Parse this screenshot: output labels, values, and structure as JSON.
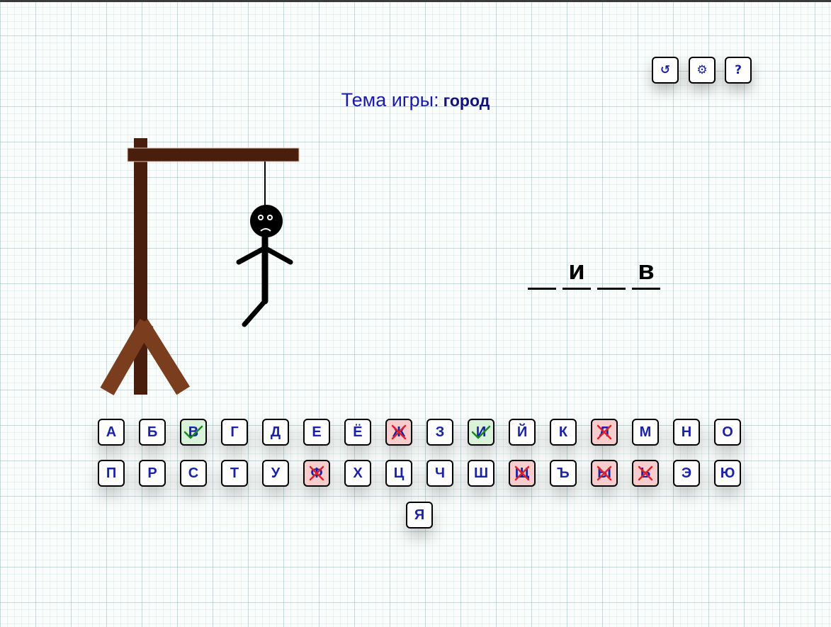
{
  "controls": {
    "restart_glyph": "↺",
    "settings_glyph": "⚙",
    "help_glyph": "?"
  },
  "theme": {
    "label": "Тема игры:",
    "value": "город"
  },
  "word": [
    "",
    "и",
    "",
    "в"
  ],
  "keyboard": {
    "rows": [
      [
        {
          "letter": "А",
          "state": "unused"
        },
        {
          "letter": "Б",
          "state": "unused"
        },
        {
          "letter": "В",
          "state": "correct"
        },
        {
          "letter": "Г",
          "state": "unused"
        },
        {
          "letter": "Д",
          "state": "unused"
        },
        {
          "letter": "Е",
          "state": "unused"
        },
        {
          "letter": "Ё",
          "state": "unused"
        },
        {
          "letter": "Ж",
          "state": "wrong"
        },
        {
          "letter": "З",
          "state": "unused"
        },
        {
          "letter": "И",
          "state": "correct"
        },
        {
          "letter": "Й",
          "state": "unused"
        },
        {
          "letter": "К",
          "state": "unused"
        },
        {
          "letter": "Л",
          "state": "wrong"
        },
        {
          "letter": "М",
          "state": "unused"
        },
        {
          "letter": "Н",
          "state": "unused"
        },
        {
          "letter": "О",
          "state": "unused"
        }
      ],
      [
        {
          "letter": "П",
          "state": "unused"
        },
        {
          "letter": "Р",
          "state": "unused"
        },
        {
          "letter": "С",
          "state": "unused"
        },
        {
          "letter": "Т",
          "state": "unused"
        },
        {
          "letter": "У",
          "state": "unused"
        },
        {
          "letter": "Ф",
          "state": "wrong"
        },
        {
          "letter": "Х",
          "state": "unused"
        },
        {
          "letter": "Ц",
          "state": "unused"
        },
        {
          "letter": "Ч",
          "state": "unused"
        },
        {
          "letter": "Ш",
          "state": "unused"
        },
        {
          "letter": "Щ",
          "state": "wrong"
        },
        {
          "letter": "Ъ",
          "state": "unused"
        },
        {
          "letter": "Ы",
          "state": "wrong"
        },
        {
          "letter": "Ь",
          "state": "wrong"
        },
        {
          "letter": "Э",
          "state": "unused"
        },
        {
          "letter": "Ю",
          "state": "unused"
        }
      ],
      [
        {
          "letter": "Я",
          "state": "unused"
        }
      ]
    ]
  },
  "colors": {
    "accent": "#1a23a8",
    "wood_dark": "#4a1e0c",
    "wood_light": "#7a3e1e",
    "correct_bg": "#d9f2d9",
    "wrong_bg": "#f6cccc",
    "check": "#1a8a1a",
    "cross": "#e0202a"
  }
}
